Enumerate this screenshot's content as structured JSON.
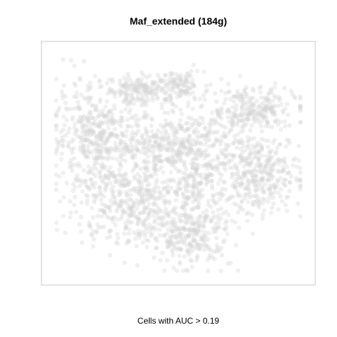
{
  "chart_data": {
    "type": "scatter",
    "title": "Maf_extended (184g)",
    "xlabel": "Cells with AUC > 0.19",
    "ylabel": "",
    "axes_shown": false,
    "grid": false,
    "legend": "none",
    "point_color": "#d3d3d3",
    "box_color": "#c8c8c8",
    "highlighted_cells": 0,
    "clusters": [
      {
        "name": "top-center",
        "center": [
          0.52,
          0.85
        ],
        "spread": [
          0.04,
          0.03
        ],
        "weight": 0.03
      },
      {
        "name": "upper-center-left",
        "center": [
          0.37,
          0.83
        ],
        "spread": [
          0.07,
          0.035
        ],
        "weight": 0.07
      },
      {
        "name": "upper-right",
        "center": [
          0.78,
          0.74
        ],
        "spread": [
          0.09,
          0.05
        ],
        "weight": 0.1
      },
      {
        "name": "left",
        "center": [
          0.18,
          0.62
        ],
        "spread": [
          0.09,
          0.12
        ],
        "weight": 0.17
      },
      {
        "name": "center",
        "center": [
          0.5,
          0.58
        ],
        "spread": [
          0.12,
          0.07
        ],
        "weight": 0.16
      },
      {
        "name": "right",
        "center": [
          0.82,
          0.45
        ],
        "spread": [
          0.08,
          0.09
        ],
        "weight": 0.14
      },
      {
        "name": "lower-left",
        "center": [
          0.33,
          0.33
        ],
        "spread": [
          0.12,
          0.1
        ],
        "weight": 0.18
      },
      {
        "name": "bottom-center",
        "center": [
          0.55,
          0.18
        ],
        "spread": [
          0.08,
          0.07
        ],
        "weight": 0.1
      },
      {
        "name": "lower-center",
        "center": [
          0.58,
          0.4
        ],
        "spread": [
          0.07,
          0.07
        ],
        "weight": 0.05
      }
    ]
  }
}
